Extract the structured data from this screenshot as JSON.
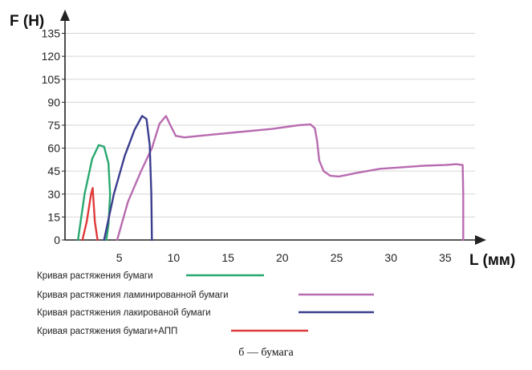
{
  "chart_data": {
    "type": "line",
    "ylabel": "F (H)",
    "xlabel": "L (мм)",
    "xlim": [
      0,
      37
    ],
    "ylim": [
      0,
      140
    ],
    "x_ticks": [
      0,
      5,
      10,
      15,
      20,
      25,
      30,
      35
    ],
    "y_ticks": [
      0,
      15,
      30,
      45,
      60,
      75,
      90,
      105,
      120,
      135
    ],
    "x_tick_labels": [
      "0",
      "5",
      "10",
      "15",
      "20",
      "25",
      "30",
      "35"
    ],
    "y_tick_labels": [
      "0",
      "15",
      "30",
      "45",
      "60",
      "75",
      "90",
      "105",
      "120",
      "135"
    ],
    "grid": "horizontal",
    "legend_position": "bottom",
    "series": [
      {
        "name": "Кривая растяжения бумаги",
        "color": "#2aa870",
        "x": [
          1.2,
          1.8,
          2.5,
          3.1,
          3.6,
          4.0,
          4.15,
          4.0,
          3.8
        ],
        "y": [
          0,
          30,
          53,
          62,
          61,
          50,
          30,
          10,
          0
        ]
      },
      {
        "name": "Кривая растяжения ламинированной бумаги",
        "color": "#b86bb0",
        "x": [
          4.8,
          5.8,
          7.0,
          8.0,
          8.7,
          9.3,
          9.7,
          10.2,
          11.0,
          13.0,
          16.0,
          19.0,
          21.5,
          22.6,
          23.0,
          23.2,
          23.4,
          23.8,
          24.4,
          25.2,
          27.0,
          29.0,
          31.0,
          33.0,
          35.0,
          36.0,
          36.6,
          36.65,
          36.65
        ],
        "y": [
          0,
          25,
          45,
          60,
          76,
          81,
          75,
          68,
          67,
          68.5,
          70.5,
          72.5,
          75,
          75.5,
          73,
          65,
          52,
          45,
          42,
          41.5,
          44,
          46.5,
          47.5,
          48.5,
          49,
          49.5,
          49,
          30,
          0
        ]
      },
      {
        "name": "Кривая растяжения лакированой бумаги",
        "color": "#3b3d8f",
        "x": [
          3.6,
          4.5,
          5.5,
          6.4,
          7.1,
          7.5,
          7.8,
          7.95,
          8.0
        ],
        "y": [
          0,
          30,
          55,
          72,
          81,
          79,
          62,
          30,
          0
        ]
      },
      {
        "name": "Кривая растяжения бумаги+АПП",
        "color": "#e03a3a",
        "x": [
          1.6,
          2.0,
          2.4,
          2.55,
          2.75,
          3.0
        ],
        "y": [
          0,
          12,
          30,
          34,
          12,
          0
        ]
      }
    ],
    "caption": "б — бумага"
  }
}
